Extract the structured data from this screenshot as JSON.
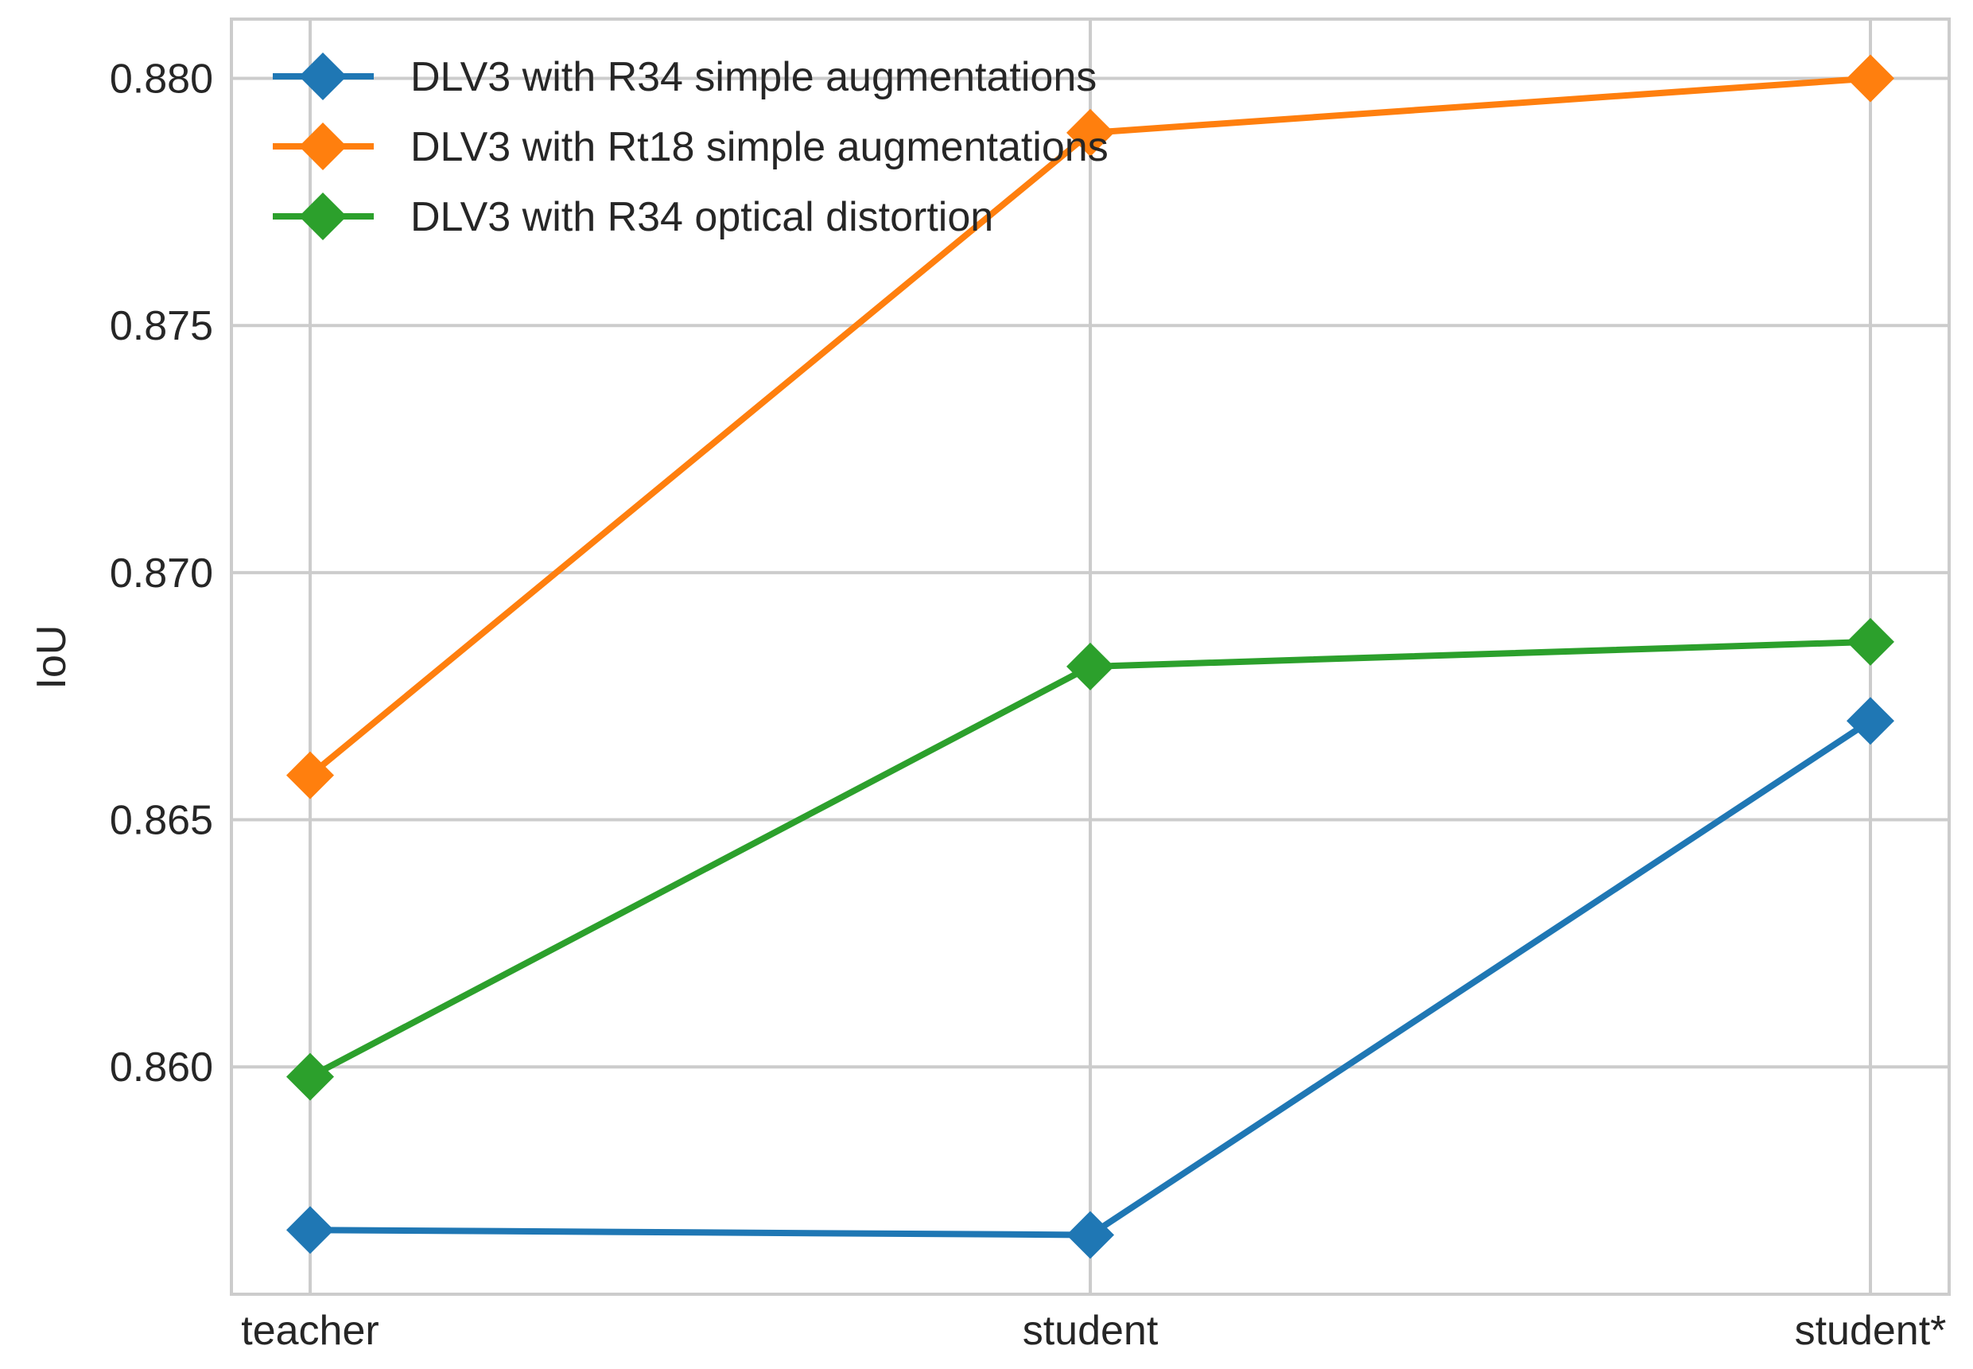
{
  "chart_data": {
    "type": "line",
    "title": "",
    "xlabel": "",
    "ylabel": "IoU",
    "categories": [
      "teacher",
      "student",
      "student*"
    ],
    "ylim": [
      0.8554,
      0.8812
    ],
    "yticks": [
      0.86,
      0.865,
      0.87,
      0.875,
      0.88
    ],
    "ytick_labels": [
      "0.860",
      "0.865",
      "0.870",
      "0.875",
      "0.880"
    ],
    "grid": true,
    "legend_position": "top-left",
    "marker": "diamond",
    "series": [
      {
        "name": "DLV3 with R34 simple augmentations",
        "color": "#1f77b4",
        "values": [
          0.8567,
          0.8566,
          0.867
        ]
      },
      {
        "name": " DLV3 with Rt18 simple augmentations",
        "color": "#ff7f0e",
        "values": [
          0.8659,
          0.8789,
          0.88
        ]
      },
      {
        "name": "DLV3 with R34 optical distortion",
        "color": "#2ca02c",
        "values": [
          0.8598,
          0.8681,
          0.8686
        ]
      }
    ]
  }
}
